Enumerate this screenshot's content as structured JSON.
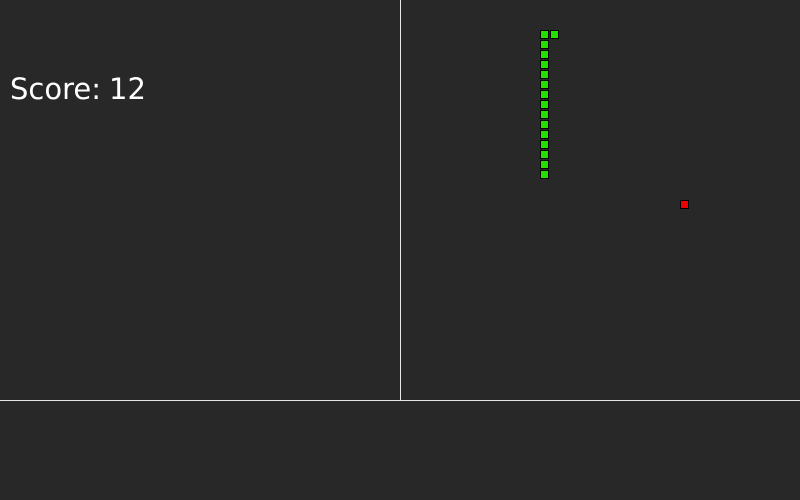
{
  "game": {
    "score_label": "Score:",
    "score": "12",
    "grid_cell_size": 10,
    "snake": {
      "color": "#22e000",
      "segments": [
        {
          "col": 15,
          "row": 3
        },
        {
          "col": 14,
          "row": 3
        },
        {
          "col": 14,
          "row": 4
        },
        {
          "col": 14,
          "row": 5
        },
        {
          "col": 14,
          "row": 6
        },
        {
          "col": 14,
          "row": 7
        },
        {
          "col": 14,
          "row": 8
        },
        {
          "col": 14,
          "row": 9
        },
        {
          "col": 14,
          "row": 10
        },
        {
          "col": 14,
          "row": 11
        },
        {
          "col": 14,
          "row": 12
        },
        {
          "col": 14,
          "row": 13
        },
        {
          "col": 14,
          "row": 14
        },
        {
          "col": 14,
          "row": 15
        },
        {
          "col": 14,
          "row": 16
        },
        {
          "col": 14,
          "row": 17
        }
      ]
    },
    "food": {
      "col": 28,
      "row": 20,
      "color": "#ee0000"
    },
    "background_color": "#282828",
    "divider_color": "#e6e6e6"
  }
}
